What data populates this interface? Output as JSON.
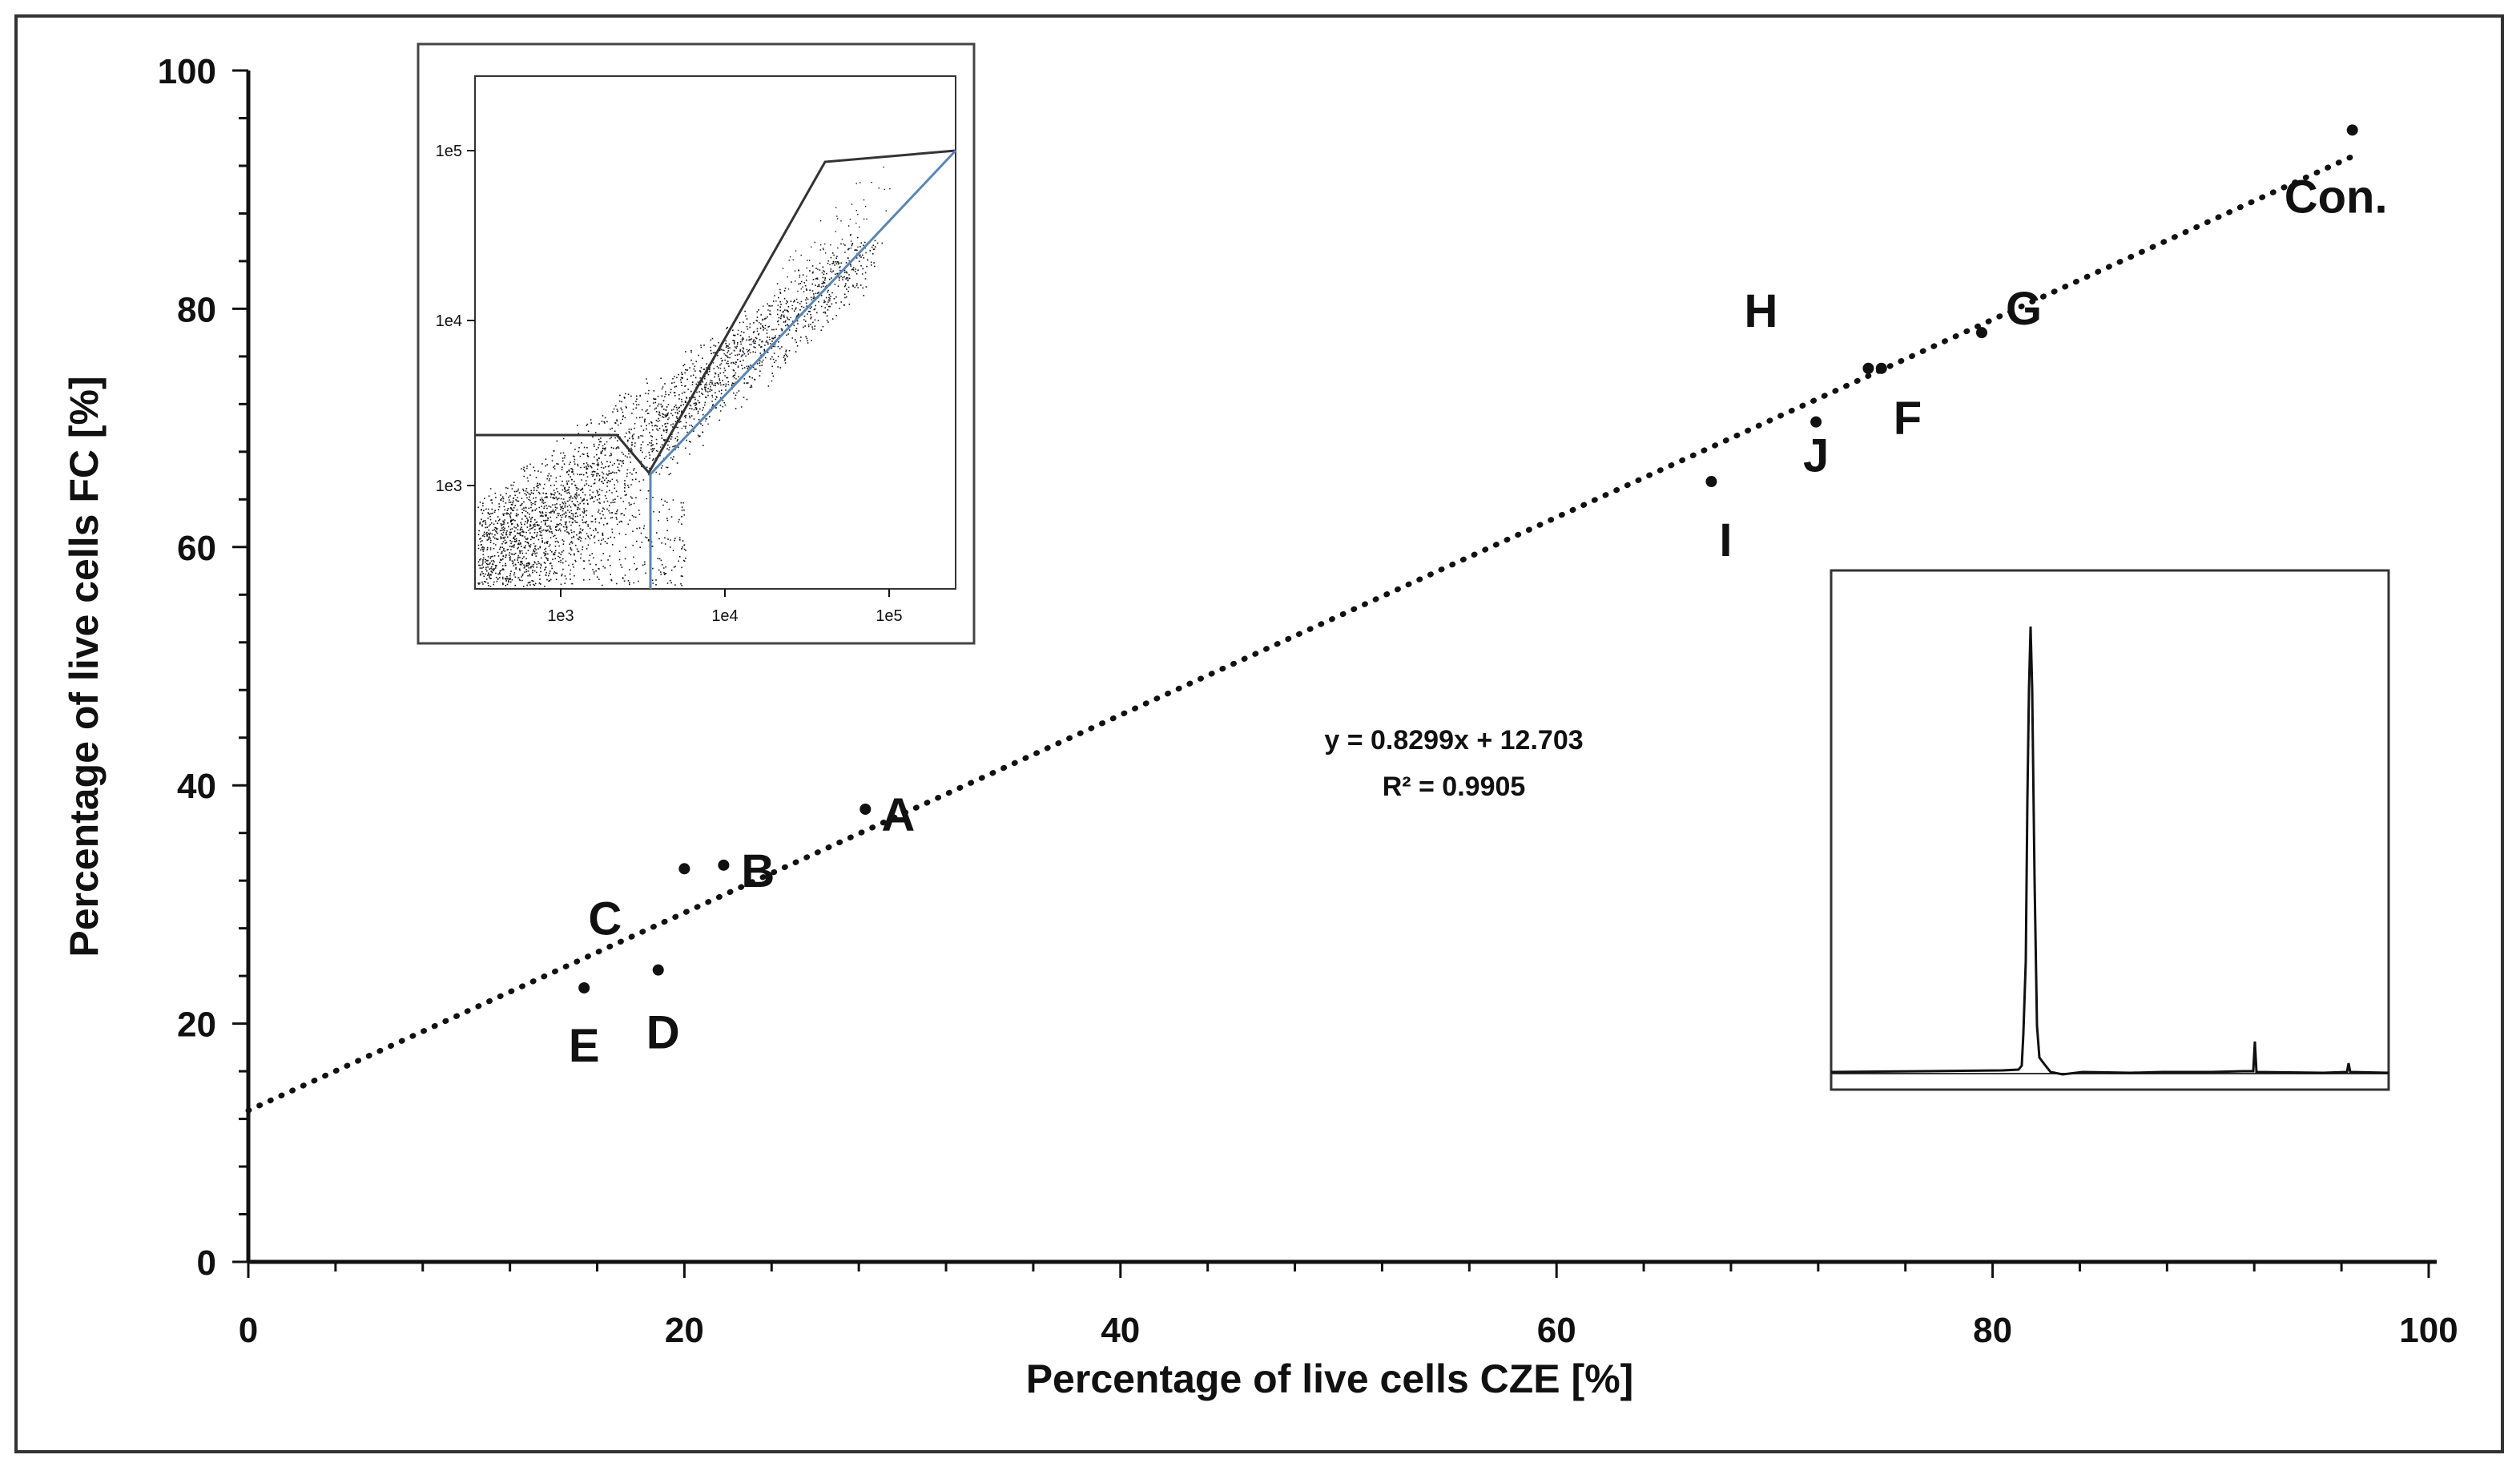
{
  "chart_data": {
    "type": "scatter",
    "title": "",
    "xlabel": "Percentage of live cells CZE [%]",
    "ylabel": "Percentage of live cells FC [%]",
    "xlim": [
      0,
      100
    ],
    "ylim": [
      0,
      100
    ],
    "x_ticks": [
      0,
      20,
      40,
      60,
      80,
      100
    ],
    "y_ticks": [
      0,
      20,
      40,
      60,
      80,
      100
    ],
    "grid": false,
    "series": [
      {
        "name": "samples",
        "points": [
          {
            "label": "Con.",
            "x": 96.5,
            "y": 95.0
          },
          {
            "label": "G",
            "x": 79.5,
            "y": 78.0
          },
          {
            "label": "H",
            "x": 74.3,
            "y": 75.0
          },
          {
            "label": "F",
            "x": 74.9,
            "y": 75.0
          },
          {
            "label": "J",
            "x": 71.9,
            "y": 70.5
          },
          {
            "label": "I",
            "x": 67.1,
            "y": 65.5
          },
          {
            "label": "A",
            "x": 28.3,
            "y": 38.0
          },
          {
            "label": "B",
            "x": 21.8,
            "y": 33.3
          },
          {
            "label": "C",
            "x": 20.0,
            "y": 33.0
          },
          {
            "label": "D",
            "x": 18.8,
            "y": 24.5
          },
          {
            "label": "E",
            "x": 15.4,
            "y": 23.0
          }
        ]
      }
    ],
    "trendline": {
      "style": "dotted",
      "slope": 0.8299,
      "intercept": 12.703,
      "x_range": [
        0,
        96.5
      ],
      "equation_text": "y = 0.8299x + 12.703",
      "r2_text": "R² = 0.9905"
    },
    "insets": [
      {
        "type": "scatter",
        "description_role": "flow cytometry dot plot",
        "x_ticks": [
          "1e3",
          "1e4",
          "1e5"
        ],
        "y_ticks": [
          "1e5",
          "1e4",
          "1e3"
        ]
      },
      {
        "type": "line",
        "description_role": "electropherogram"
      }
    ]
  }
}
